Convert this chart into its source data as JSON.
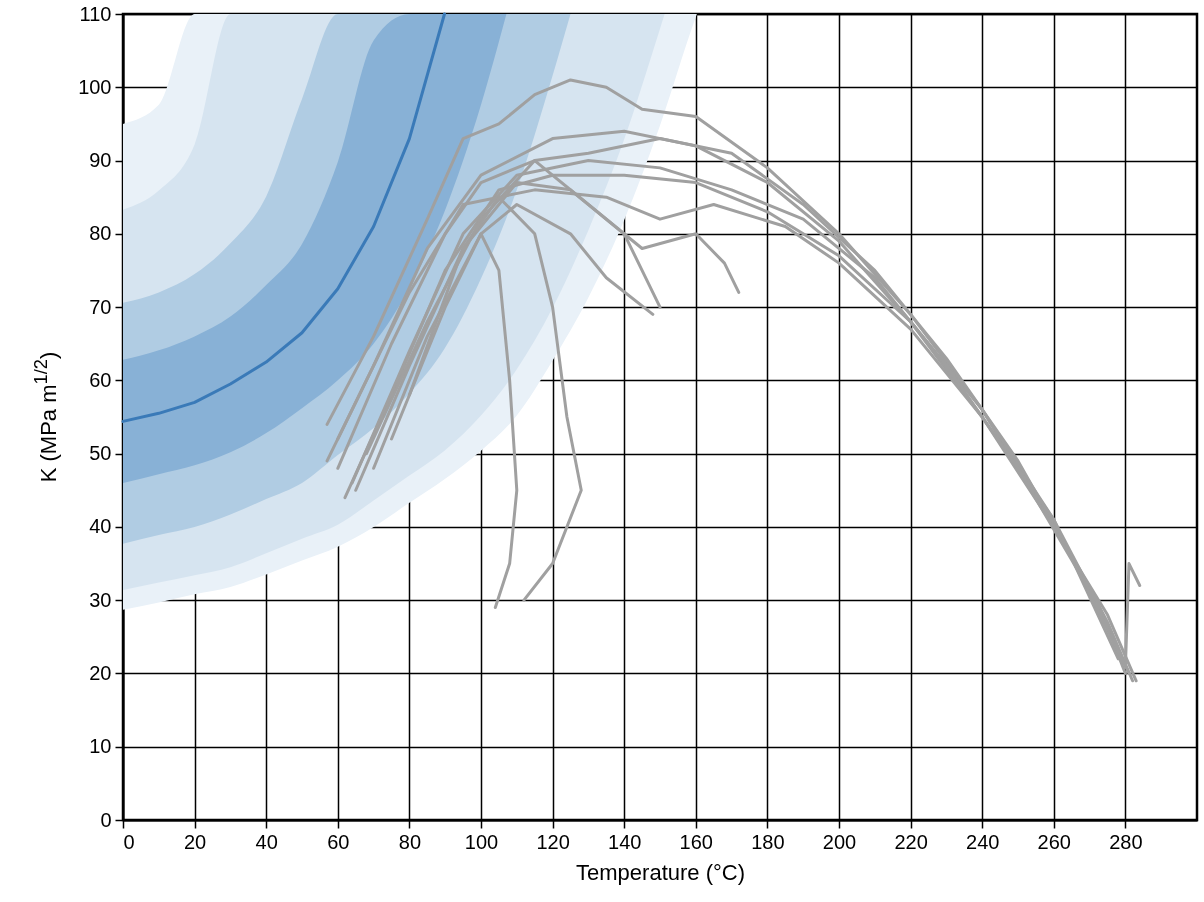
{
  "chart_data": {
    "type": "line",
    "xlabel": "Temperature (°C)",
    "ylabel": "K (MPa m$^{1/2}$)",
    "xlim": [
      0,
      300
    ],
    "ylim": [
      0,
      110
    ],
    "xticks": [
      0,
      20,
      40,
      60,
      80,
      100,
      120,
      140,
      160,
      180,
      200,
      220,
      240,
      260,
      280
    ],
    "yticks": [
      0,
      10,
      20,
      30,
      40,
      50,
      60,
      70,
      80,
      90,
      100,
      110
    ],
    "grid": true,
    "series": [
      {
        "color": "#e9f1f8",
        "x": [
          0,
          10,
          20,
          30,
          40,
          50,
          60,
          70,
          80,
          89.8,
          100,
          110,
          120,
          130,
          140,
          150,
          160,
          160.3
        ],
        "values": [
          null,
          null,
          null,
          null,
          null,
          null,
          null,
          null,
          null,
          null,
          null,
          null,
          null,
          null,
          null,
          null,
          null,
          null
        ],
        "lower": [
          28.7,
          29.7,
          30.8,
          31.8,
          33.5,
          35.4,
          37.3,
          40,
          43.3,
          46.5,
          50.4,
          55.2,
          62.7,
          71.3,
          81.9,
          94.8,
          109.6,
          110
        ],
        "upper": [
          95,
          97.6,
          110,
          110,
          110,
          110,
          110,
          110,
          110,
          110,
          110,
          110,
          110,
          110,
          110,
          110,
          110,
          110
        ]
      },
      {
        "color": "#d6e4f0",
        "x": [
          0,
          10,
          20,
          30,
          40,
          50,
          60,
          70,
          80,
          89.8,
          100,
          110,
          120,
          130,
          140,
          150,
          151.3
        ],
        "values": [
          null,
          null,
          null,
          null,
          null,
          null,
          null,
          null,
          null,
          null,
          null,
          null,
          null,
          null,
          null,
          null,
          null
        ],
        "lower": [
          31.4,
          32.4,
          33.4,
          34.5,
          36.4,
          38.4,
          40.3,
          43.6,
          47,
          50.4,
          55.2,
          61.5,
          69.9,
          80.5,
          92.9,
          108,
          110
        ],
        "upper": [
          83.3,
          85.9,
          92.2,
          110,
          110,
          110,
          110,
          110,
          110,
          110,
          110,
          110,
          110,
          110,
          110,
          110,
          110
        ]
      },
      {
        "color": "#b0cce3",
        "x": [
          0,
          10,
          20,
          30,
          40,
          50,
          60,
          70,
          80,
          89.8,
          100,
          110,
          120,
          125
        ],
        "values": [
          null,
          null,
          null,
          null,
          null,
          null,
          null,
          null,
          null,
          null,
          null,
          null,
          null,
          null
        ],
        "lower": [
          37.7,
          38.9,
          40,
          41.7,
          43.8,
          46,
          49.8,
          53.5,
          58.2,
          64.3,
          73.9,
          86,
          101.6,
          110
        ],
        "upper": [
          70.6,
          72,
          74.5,
          78.7,
          85.1,
          98.4,
          110,
          110,
          110,
          110,
          110,
          110,
          110,
          110
        ]
      },
      {
        "color": "#88b1d6",
        "x": [
          0,
          10,
          20,
          30,
          40,
          50,
          60,
          70,
          80,
          89.8,
          100,
          107.1
        ],
        "values": [
          null,
          null,
          null,
          null,
          null,
          null,
          null,
          null,
          null,
          null,
          null,
          null
        ],
        "lower": [
          46,
          47.2,
          48.4,
          50.2,
          52.8,
          56.2,
          60,
          65,
          72.6,
          83,
          97.6,
          110
        ],
        "upper": [
          62.8,
          64.1,
          66,
          68.7,
          73,
          78.6,
          89.8,
          106.4,
          110,
          110,
          110,
          110
        ]
      },
      {
        "color": "#3a7ab8",
        "x": [
          0,
          10,
          20,
          30,
          40,
          50,
          60,
          70,
          80,
          89.8
        ],
        "values": [
          54.4,
          55.5,
          57,
          59.5,
          62.5,
          66.5,
          72.5,
          81,
          93,
          110
        ]
      },
      {
        "color": "#a0a0a0",
        "x": [
          57,
          70,
          85,
          95,
          105,
          115,
          125,
          135,
          145,
          160,
          180,
          200,
          220,
          240,
          260,
          275,
          283
        ],
        "values": [
          54,
          66,
          82,
          93,
          95,
          99,
          101,
          100,
          97,
          96,
          89,
          80,
          69,
          56,
          40,
          28,
          19
        ]
      },
      {
        "color": "#a0a0a0",
        "x": [
          60,
          75,
          90,
          100,
          115,
          130,
          150,
          170,
          190,
          210,
          230,
          250,
          265,
          280,
          281,
          284
        ],
        "values": [
          48,
          65,
          80,
          87,
          90,
          91,
          93,
          91,
          84,
          75,
          63,
          49,
          36,
          21,
          35,
          32
        ]
      },
      {
        "color": "#a0a0a0",
        "x": [
          62,
          75,
          90,
          105,
          120,
          140,
          160,
          180,
          200,
          220,
          240,
          260,
          275,
          282
        ],
        "values": [
          44,
          58,
          75,
          86,
          88,
          88,
          87,
          83,
          77,
          68,
          56,
          41,
          27,
          19
        ]
      },
      {
        "color": "#a0a0a0",
        "x": [
          65,
          80,
          95,
          110,
          125,
          140,
          150
        ],
        "values": [
          45,
          62,
          78,
          87,
          86,
          80,
          70
        ]
      },
      {
        "color": "#a0a0a0",
        "x": [
          68,
          85,
          100,
          115,
          130,
          145,
          160,
          168,
          172
        ],
        "values": [
          50,
          68,
          82,
          90,
          84,
          78,
          80,
          76,
          72
        ]
      },
      {
        "color": "#a0a0a0",
        "x": [
          80,
          95,
          105,
          115,
          120,
          124,
          128,
          120,
          112
        ],
        "values": [
          58,
          78,
          85,
          80,
          70,
          55,
          45,
          35,
          30
        ]
      },
      {
        "color": "#a0a0a0",
        "x": [
          75,
          90,
          100,
          105,
          108,
          110,
          108,
          104
        ],
        "values": [
          52,
          70,
          80,
          75,
          60,
          45,
          35,
          29
        ]
      },
      {
        "color": "#a0a0a0",
        "x": [
          57,
          70,
          85,
          100,
          120,
          140,
          160,
          180,
          200,
          220,
          240,
          260,
          272,
          280
        ],
        "values": [
          49,
          62,
          78,
          88,
          93,
          94,
          92,
          87,
          79,
          68,
          55,
          40,
          30,
          20
        ]
      },
      {
        "color": "#a0a0a0",
        "x": [
          60,
          80,
          95,
          115,
          135,
          150,
          165,
          185,
          200,
          220,
          240,
          260,
          278
        ],
        "values": [
          52,
          72,
          84,
          86,
          85,
          82,
          84,
          81,
          76,
          67,
          55,
          41,
          22
        ]
      },
      {
        "color": "#a0a0a0",
        "x": [
          70,
          85,
          100,
          110,
          125,
          135,
          148
        ],
        "values": [
          48,
          66,
          80,
          84,
          80,
          74,
          69
        ]
      },
      {
        "color": "#a0a0a0",
        "x": [
          64,
          80,
          95,
          110,
          130,
          150,
          170,
          190,
          210,
          230,
          250,
          268,
          281
        ],
        "values": [
          46,
          64,
          80,
          88,
          90,
          89,
          86,
          82,
          74,
          62,
          48,
          33,
          20
        ]
      }
    ]
  }
}
